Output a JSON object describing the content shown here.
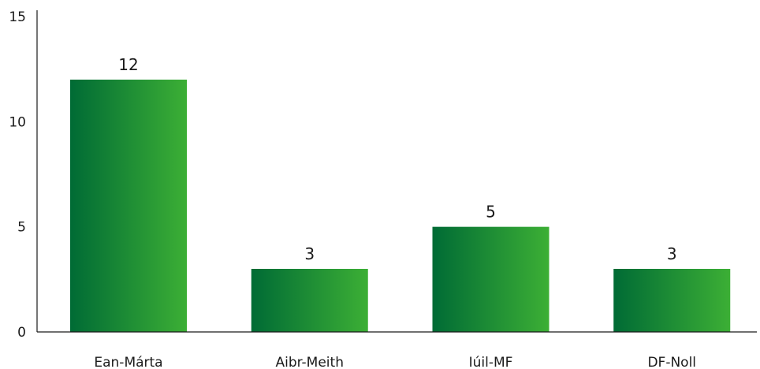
{
  "chart_data": {
    "type": "bar",
    "categories": [
      "Ean-Márta",
      "Aibr-Meith",
      "Iúil-MF",
      "DF-Noll"
    ],
    "values": [
      12,
      3,
      5,
      3
    ],
    "title": "",
    "xlabel": "",
    "ylabel": "",
    "ylim": [
      0,
      15
    ],
    "yticks": [
      0,
      5,
      10,
      15
    ],
    "grid": false,
    "legend": "none",
    "colors": {
      "bar_start": "#006B35",
      "bar_end": "#3CAF35",
      "axis": "#1a1a1a",
      "text": "#1a1a1a"
    }
  }
}
